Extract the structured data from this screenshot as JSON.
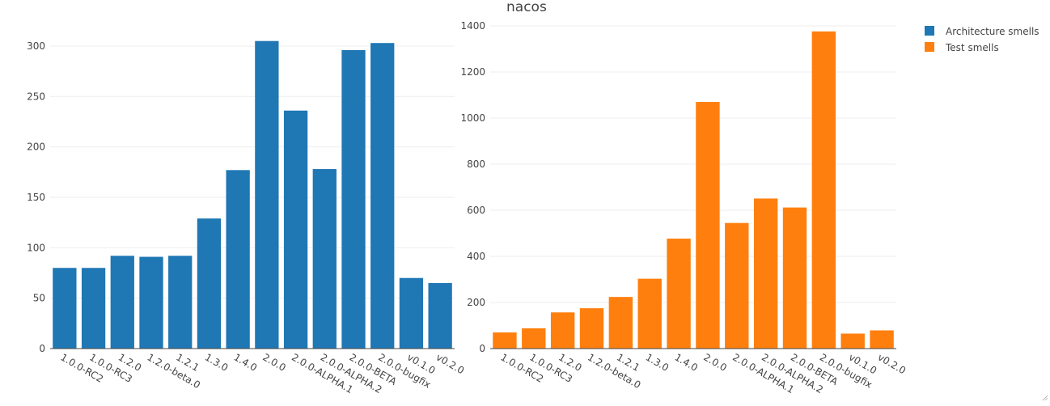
{
  "title": "nacos",
  "legend": {
    "position": "top-right",
    "items": [
      {
        "label": "Architecture smells",
        "color": "#1f77b4"
      },
      {
        "label": "Test smells",
        "color": "#ff7f0e"
      }
    ]
  },
  "chart_data": [
    {
      "type": "bar",
      "name": "Architecture smells",
      "color": "#1f77b4",
      "categories": [
        "1.0.0-RC2",
        "1.0.0-RC3",
        "1.2.0",
        "1.2.0-beta.0",
        "1.2.1",
        "1.3.0",
        "1.4.0",
        "2.0.0",
        "2.0.0-ALPHA.1",
        "2.0.0-ALPHA.2",
        "2.0.0-BETA",
        "2.0.0-bugfix",
        "v0.1.0",
        "v0.2.0"
      ],
      "values": [
        80,
        80,
        92,
        91,
        92,
        129,
        177,
        305,
        236,
        178,
        296,
        303,
        70,
        65
      ],
      "ylim": [
        0,
        320
      ],
      "yticks": [
        0,
        50,
        100,
        150,
        200,
        250,
        300
      ],
      "grid": true
    },
    {
      "type": "bar",
      "name": "Test smells",
      "color": "#ff7f0e",
      "categories": [
        "1.0.0-RC2",
        "1.0.0-RC3",
        "1.2.0",
        "1.2.0-beta.0",
        "1.2.1",
        "1.3.0",
        "1.4.0",
        "2.0.0",
        "2.0.0-ALPHA.1",
        "2.0.0-ALPHA.2",
        "2.0.0-BETA",
        "2.0.0-bugfix",
        "v0.1.0",
        "v0.2.0"
      ],
      "values": [
        70,
        88,
        157,
        175,
        224,
        303,
        477,
        1070,
        545,
        651,
        612,
        1376,
        65,
        79
      ],
      "ylim": [
        0,
        1400
      ],
      "yticks": [
        0,
        200,
        400,
        600,
        800,
        1000,
        1200,
        1400
      ],
      "grid": true
    }
  ]
}
